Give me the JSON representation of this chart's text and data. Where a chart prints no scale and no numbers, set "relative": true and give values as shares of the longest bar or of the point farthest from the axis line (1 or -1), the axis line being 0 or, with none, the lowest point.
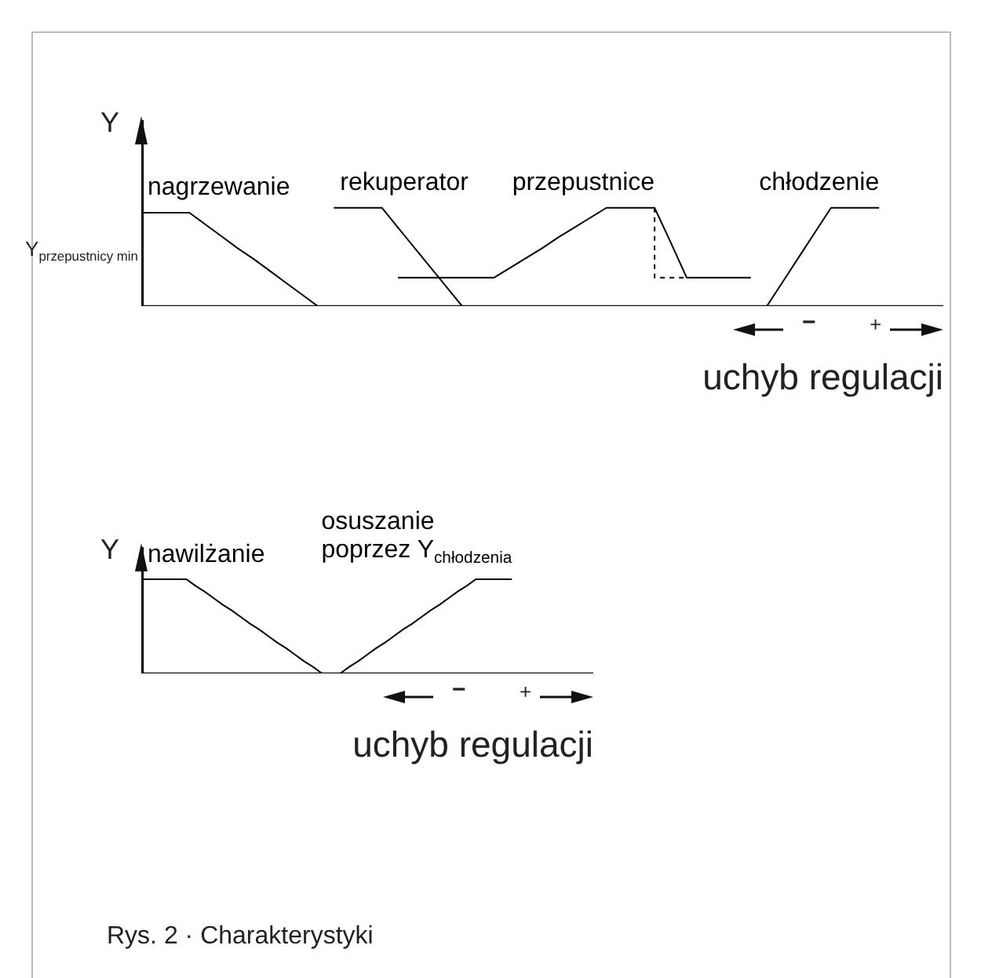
{
  "chart_data": [
    {
      "type": "line",
      "relative": true,
      "ylabel": "Y",
      "xlabel": "uchyb regulacji",
      "categories": [
        null,
        null,
        null,
        null,
        null,
        null,
        null,
        null,
        null,
        null,
        null,
        null,
        null,
        null,
        null,
        null,
        null,
        null,
        null,
        null,
        null,
        null,
        null,
        null,
        null,
        null,
        null,
        null,
        null,
        null,
        null,
        null,
        null,
        null,
        null,
        null,
        null,
        null,
        null,
        null,
        null,
        null,
        null,
        null,
        null,
        null,
        null,
        null,
        null,
        null,
        null
      ],
      "annotations": [
        "−",
        "+",
        "Y$_{przepustnicy min}$"
      ],
      "series": [
        {
          "name": "nagrzewanie",
          "color": "#000000",
          "values": [
            0.95,
            0.95,
            0.95,
            0.95,
            0.83,
            0.71,
            0.59,
            0.48,
            0.36,
            0.24,
            0.12,
            0,
            null,
            null,
            null,
            null,
            null,
            null,
            null,
            null,
            null,
            null,
            null,
            null,
            null,
            null,
            null,
            null,
            null,
            null,
            null,
            null,
            null,
            null,
            null,
            null,
            null,
            null,
            null,
            null,
            null,
            null,
            null,
            null,
            null,
            null,
            null,
            null,
            null,
            null,
            null
          ]
        },
        {
          "name": "rekuperator",
          "color": "#000000",
          "values": [
            null,
            null,
            null,
            null,
            null,
            null,
            null,
            null,
            null,
            null,
            null,
            null,
            1,
            1,
            1,
            1,
            0.8,
            0.6,
            0.4,
            0.2,
            0,
            null,
            null,
            null,
            null,
            null,
            null,
            null,
            null,
            null,
            null,
            null,
            null,
            null,
            null,
            null,
            null,
            null,
            null,
            null,
            null,
            null,
            null,
            null,
            null,
            null,
            null,
            null,
            null,
            null,
            null
          ]
        },
        {
          "name": "przepustnice",
          "color": "#000000",
          "values": [
            null,
            null,
            null,
            null,
            null,
            null,
            null,
            null,
            null,
            null,
            null,
            null,
            null,
            null,
            null,
            null,
            0.29,
            0.29,
            0.29,
            0.29,
            0.29,
            0.29,
            0.29,
            0.39,
            0.49,
            0.59,
            0.7,
            0.8,
            0.9,
            1,
            1,
            1,
            1,
            0.65,
            0.29,
            0.29,
            0.29,
            0.29,
            0.29,
            null,
            null,
            null,
            null,
            null,
            null,
            null,
            null,
            null,
            null,
            null,
            null
          ]
        },
        {
          "type": "step",
          "color": "#000000",
          "line_style": "dashed",
          "values": [
            null,
            null,
            null,
            null,
            null,
            null,
            null,
            null,
            null,
            null,
            null,
            null,
            null,
            null,
            null,
            null,
            null,
            null,
            null,
            null,
            null,
            null,
            null,
            null,
            null,
            null,
            null,
            null,
            null,
            null,
            null,
            null,
            1,
            0.29,
            0.29,
            null,
            null,
            null,
            null,
            null,
            null,
            null,
            null,
            null,
            null,
            null,
            null,
            null,
            null,
            null,
            null
          ]
        },
        {
          "name": "chłodzenie",
          "color": "#000000",
          "values": [
            null,
            null,
            null,
            null,
            null,
            null,
            null,
            null,
            null,
            null,
            null,
            null,
            null,
            null,
            null,
            null,
            null,
            null,
            null,
            null,
            null,
            null,
            null,
            null,
            null,
            null,
            null,
            null,
            null,
            null,
            null,
            null,
            null,
            null,
            null,
            null,
            null,
            null,
            null,
            0,
            0.25,
            0.5,
            0.75,
            1,
            1,
            1,
            1,
            null,
            null,
            null,
            null
          ]
        }
      ]
    },
    {
      "type": "line",
      "relative": true,
      "ylabel": "Y",
      "xlabel": "uchyb regulacji",
      "categories": [
        null,
        null,
        null,
        null,
        null,
        null,
        null,
        null,
        null,
        null,
        null,
        null,
        null,
        null,
        null,
        null,
        null,
        null,
        null,
        null,
        null,
        null,
        null,
        null,
        null,
        null,
        null,
        null,
        null,
        null,
        null,
        null,
        null,
        null,
        null,
        null,
        null,
        null,
        null,
        null,
        null,
        null,
        null,
        null,
        null,
        null,
        null,
        null,
        null,
        null,
        null
      ],
      "annotations": [
        "−",
        "+"
      ],
      "series": [
        {
          "name": "nawilżanie",
          "color": "#000000",
          "values": [
            1,
            1,
            1,
            1,
            1,
            1,
            0.93,
            0.87,
            0.8,
            0.73,
            0.67,
            0.6,
            0.53,
            0.47,
            0.4,
            0.33,
            0.27,
            0.2,
            0.13,
            0.07,
            0,
            null,
            null,
            null,
            null,
            null,
            null,
            null,
            null,
            null,
            null,
            null,
            null,
            null,
            null,
            null,
            null,
            null,
            null,
            null,
            null,
            null,
            null,
            null,
            null,
            null,
            null,
            null,
            null,
            null,
            null
          ]
        },
        {
          "name": "osuszanie\npoprzez Y$_{chłodzenia}$",
          "color": "#000000",
          "values": [
            null,
            null,
            null,
            null,
            null,
            null,
            null,
            null,
            null,
            null,
            null,
            null,
            null,
            null,
            null,
            null,
            null,
            null,
            null,
            null,
            null,
            null,
            0,
            0.07,
            0.13,
            0.2,
            0.27,
            0.33,
            0.4,
            0.47,
            0.53,
            0.6,
            0.67,
            0.73,
            0.8,
            0.87,
            0.93,
            1,
            1,
            1,
            1,
            1,
            null,
            null,
            null,
            null,
            null,
            null,
            null,
            null,
            null
          ]
        }
      ]
    },
    {
      "type": "other",
      "title": "Rys. 2 · Charakterystyki"
    }
  ]
}
